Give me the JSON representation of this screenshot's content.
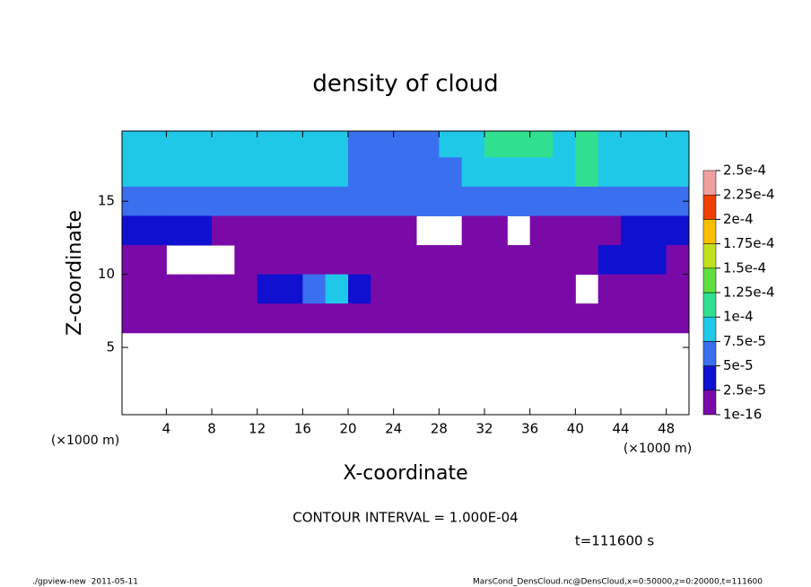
{
  "chart_data": {
    "type": "heatmap",
    "title": "density of cloud",
    "x_label": "X-coordinate",
    "y_label": "Z-coordinate",
    "x_unit": "(×1000 m)",
    "y_unit": "(×1000 m)",
    "contour_note": "CONTOUR INTERVAL = 1.000E-04",
    "time_note": "t=111600 s",
    "footer_left": "./gpview-new  2011-05-11",
    "footer_right": "MarsCond_DensCloud.nc@DensCloud,x=0:50000,z=0:20000,t=111600",
    "xlim": [
      0.1,
      50
    ],
    "ylim": [
      0.4,
      19.8
    ],
    "xticks": [
      4,
      8,
      12,
      16,
      20,
      24,
      28,
      32,
      36,
      40,
      44,
      48
    ],
    "yticks": [
      5,
      10,
      15
    ],
    "x": [
      1,
      3,
      5,
      7,
      9,
      11,
      13,
      15,
      17,
      19,
      21,
      23,
      25,
      27,
      29,
      31,
      33,
      35,
      37,
      39,
      41,
      43,
      45,
      47,
      49
    ],
    "y": [
      19,
      17,
      15,
      13,
      11,
      9,
      7,
      5,
      3,
      1
    ],
    "values": [
      [
        8e-05,
        8e-05,
        8e-05,
        8e-05,
        8e-05,
        8e-05,
        8e-05,
        8e-05,
        8e-05,
        8e-05,
        7e-05,
        7e-05,
        7e-05,
        7e-05,
        8e-05,
        8e-05,
        0.00011,
        0.00011,
        0.00011,
        9e-05,
        0.00011,
        9e-05,
        8e-05,
        8e-05,
        8e-05
      ],
      [
        8e-05,
        8e-05,
        8e-05,
        8e-05,
        8e-05,
        8e-05,
        8e-05,
        8e-05,
        8e-05,
        8e-05,
        6e-05,
        6e-05,
        6e-05,
        6e-05,
        6e-05,
        9e-05,
        9e-05,
        9e-05,
        8e-05,
        8e-05,
        0.00011,
        8e-05,
        8e-05,
        8e-05,
        8e-05
      ],
      [
        5.5e-05,
        5.5e-05,
        5.5e-05,
        5.5e-05,
        5.5e-05,
        7e-05,
        7e-05,
        7e-05,
        7e-05,
        7e-05,
        7e-05,
        5e-05,
        5e-05,
        5e-05,
        5e-05,
        5e-05,
        5e-05,
        5e-05,
        5e-05,
        5e-05,
        5e-05,
        5e-05,
        6e-05,
        6e-05,
        6e-05
      ],
      [
        3e-05,
        3e-05,
        3e-05,
        3e-05,
        1e-05,
        1e-05,
        1e-05,
        1e-05,
        1e-05,
        1e-05,
        1e-05,
        1e-05,
        1e-05,
        null,
        null,
        1e-05,
        1e-05,
        null,
        1e-05,
        1e-05,
        1e-05,
        1e-05,
        3e-05,
        3e-05,
        3e-05
      ],
      [
        1e-05,
        1e-05,
        null,
        null,
        null,
        1e-05,
        1e-05,
        1e-05,
        1e-05,
        1e-05,
        1e-05,
        1e-05,
        1e-05,
        1e-05,
        1e-05,
        1e-05,
        1e-05,
        1e-05,
        1e-05,
        1e-05,
        1e-05,
        3e-05,
        3e-05,
        3e-05,
        1e-05
      ],
      [
        1e-05,
        1e-05,
        1e-05,
        1e-05,
        1e-05,
        1e-05,
        3e-05,
        3e-05,
        6e-05,
        9e-05,
        3e-05,
        1e-05,
        1e-05,
        1e-05,
        1e-05,
        1e-05,
        1e-05,
        1e-05,
        1e-05,
        1e-05,
        null,
        1e-05,
        1e-05,
        1e-05,
        1e-05
      ],
      [
        1e-05,
        1e-05,
        1e-05,
        1e-05,
        1e-05,
        1e-05,
        1e-05,
        1e-05,
        2e-05,
        2e-05,
        1e-05,
        1e-05,
        1e-05,
        1e-05,
        1e-05,
        1e-05,
        1e-05,
        1e-05,
        1e-05,
        1e-05,
        1e-05,
        1e-05,
        1e-05,
        1e-05,
        1e-05
      ],
      [
        null,
        null,
        null,
        null,
        null,
        null,
        null,
        null,
        null,
        null,
        null,
        null,
        null,
        null,
        null,
        null,
        null,
        null,
        null,
        null,
        null,
        null,
        null,
        null,
        null
      ],
      [
        null,
        null,
        null,
        null,
        null,
        null,
        null,
        null,
        null,
        null,
        null,
        null,
        null,
        null,
        null,
        null,
        null,
        null,
        null,
        null,
        null,
        null,
        null,
        null,
        null
      ],
      [
        null,
        null,
        null,
        null,
        null,
        null,
        null,
        null,
        null,
        null,
        null,
        null,
        null,
        null,
        null,
        null,
        null,
        null,
        null,
        null,
        null,
        null,
        null,
        null,
        null
      ]
    ],
    "levels": [
      1e-16,
      {
        "value": 2.5e-05,
        "label": "2.5e-5"
      },
      {
        "value": 5e-05,
        "label": "5e-5"
      },
      {
        "value": 7.5e-05,
        "label": "7.5e-5"
      },
      {
        "value": 0.0001,
        "label": "1e-4"
      },
      {
        "value": 0.000125,
        "label": "1.25e-4"
      },
      {
        "value": 0.00015,
        "label": "1.5e-4"
      },
      {
        "value": 0.000175,
        "label": "1.75e-4"
      },
      {
        "value": 0.0002,
        "label": "2e-4"
      },
      {
        "value": 0.000225,
        "label": "2.25e-4"
      },
      {
        "value": 0.00025,
        "label": "2.5e-4"
      }
    ],
    "level_colors": [
      "#7a0aa8",
      "#1010d0",
      "#3a70f0",
      "#20c8e8",
      "#30e090",
      "#60e040",
      "#c0e020",
      "#f8c000",
      "#f04000",
      "#f0a0a0"
    ]
  }
}
